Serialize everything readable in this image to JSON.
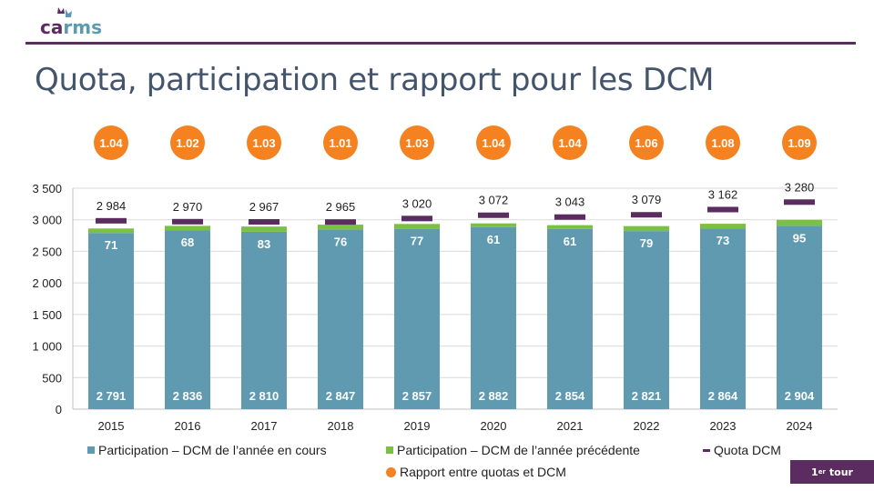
{
  "header": {
    "logo_text_a": "ca",
    "logo_text_b": "rms",
    "title": "Quota, participation et rapport pour les DCM"
  },
  "badge": {
    "number": "1",
    "suffix": "er",
    "label": "tour"
  },
  "colors": {
    "current": "#5f9ab0",
    "previous": "#7ac143",
    "quota": "#5b2c5f",
    "ratio": "#f58220"
  },
  "chart_data": {
    "type": "bar",
    "stacked": true,
    "categories": [
      "2015",
      "2016",
      "2017",
      "2018",
      "2019",
      "2020",
      "2021",
      "2022",
      "2023",
      "2024"
    ],
    "series": [
      {
        "name": "Participation  – DCM de l’année en cours",
        "values": [
          2791,
          2836,
          2810,
          2847,
          2857,
          2882,
          2854,
          2821,
          2864,
          2904
        ]
      },
      {
        "name": "Participation  – DCM de l’année précédente",
        "values": [
          71,
          68,
          83,
          76,
          77,
          61,
          61,
          79,
          73,
          95
        ]
      },
      {
        "name": "Quota DCM",
        "kind": "marker",
        "values": [
          2984,
          2970,
          2967,
          2965,
          3020,
          3072,
          3043,
          3079,
          3162,
          3280
        ]
      },
      {
        "name": "Rapport entre quotas et DCM",
        "kind": "bubble",
        "values": [
          1.04,
          1.02,
          1.03,
          1.01,
          1.03,
          1.04,
          1.04,
          1.06,
          1.08,
          1.09
        ]
      }
    ],
    "value_labels": {
      "current": [
        "2 791",
        "2 836",
        "2 810",
        "2 847",
        "2 857",
        "2 882",
        "2 854",
        "2 821",
        "2 864",
        "2 904"
      ],
      "previous": [
        "71",
        "68",
        "83",
        "76",
        "77",
        "61",
        "61",
        "79",
        "73",
        "95"
      ],
      "quota": [
        "2 984",
        "2 970",
        "2 967",
        "2 965",
        "3 020",
        "3 072",
        "3 043",
        "3 079",
        "3 162",
        "3 280"
      ],
      "ratio": [
        "1.04",
        "1.02",
        "1.03",
        "1.01",
        "1.03",
        "1.04",
        "1.04",
        "1.06",
        "1.08",
        "1.09"
      ]
    },
    "ylim": [
      0,
      3500
    ],
    "yticks": [
      0,
      500,
      1000,
      1500,
      2000,
      2500,
      3000,
      3500
    ],
    "ytick_labels": [
      "0",
      "500",
      "1 000",
      "1 500",
      "2 000",
      "2 500",
      "3 000",
      "3 500"
    ],
    "legend_position": "bottom",
    "title": "",
    "xlabel": "",
    "ylabel": ""
  }
}
